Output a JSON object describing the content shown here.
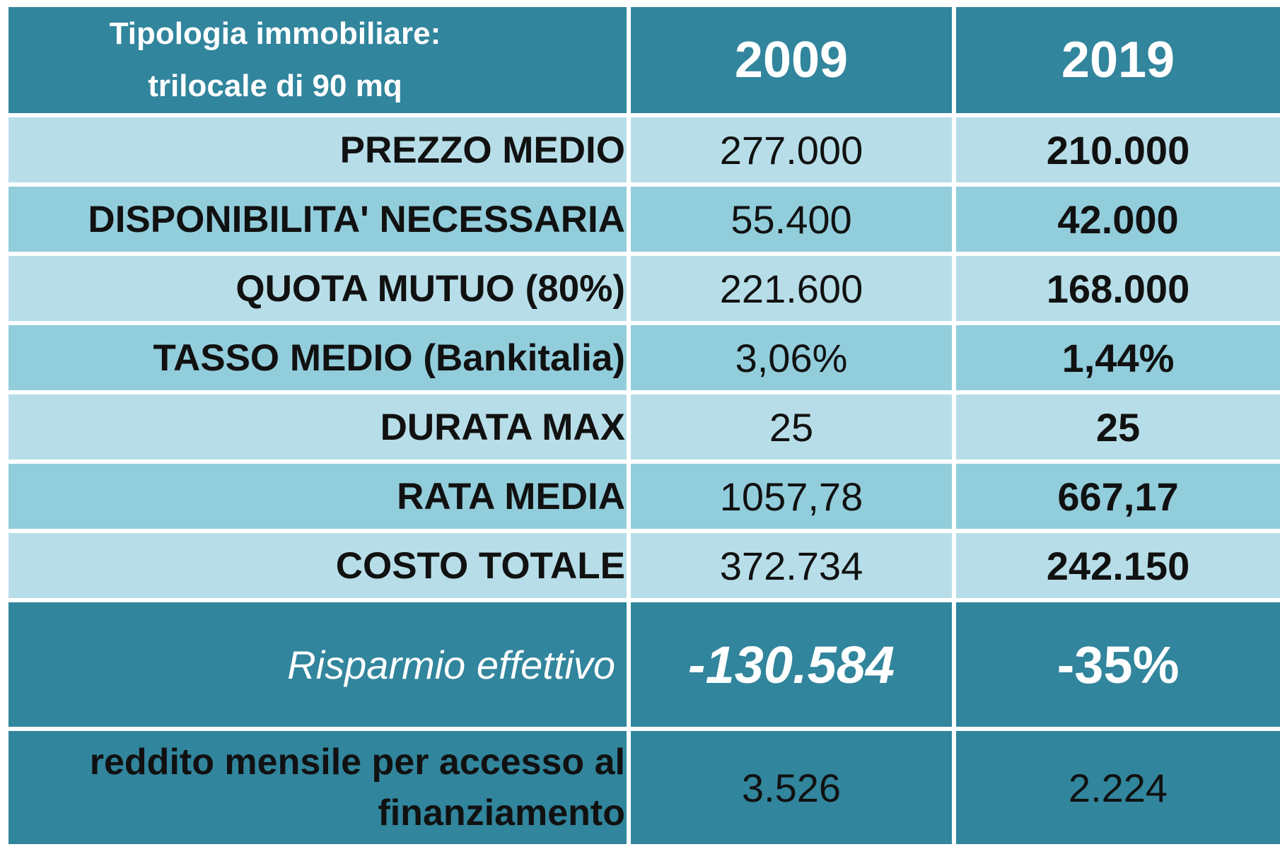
{
  "chart_data": {
    "type": "table",
    "header": {
      "label_line1": "Tipologia immobiliare:",
      "label_line2": "trilocale di 90 mq",
      "col_2009": "2009",
      "col_2019": "2019"
    },
    "rows": [
      {
        "label": "PREZZO MEDIO",
        "v2009": "277.000",
        "v2019": "210.000"
      },
      {
        "label": "DISPONIBILITA' NECESSARIA",
        "v2009": "55.400",
        "v2019": "42.000"
      },
      {
        "label": "QUOTA MUTUO (80%)",
        "v2009": "221.600",
        "v2019": "168.000"
      },
      {
        "label": "TASSO MEDIO (Bankitalia)",
        "v2009": "3,06%",
        "v2019": "1,44%"
      },
      {
        "label": "DURATA MAX",
        "v2009": "25",
        "v2019": "25"
      },
      {
        "label": "RATA MEDIA",
        "v2009": "1057,78",
        "v2019": "667,17"
      },
      {
        "label": "COSTO TOTALE",
        "v2009": "372.734",
        "v2019": "242.150"
      }
    ],
    "savings": {
      "label": "Risparmio effettivo",
      "value": "-130.584",
      "percent": "-35%"
    },
    "income": {
      "label_line1": "reddito mensile per accesso al",
      "label_line2": "finanziamento",
      "v2009": "3.526",
      "v2019": "2.224"
    }
  },
  "colors": {
    "header_teal": "#31859c",
    "row_light": "#b7dee8",
    "row_dark": "#92cddc"
  }
}
